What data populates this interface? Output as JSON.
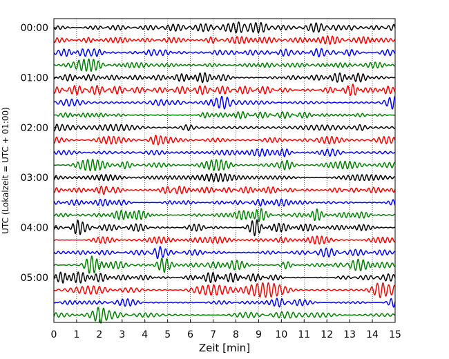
{
  "chart_data": {
    "type": "line",
    "title": "",
    "xlabel": "Zeit  [min]",
    "ylabel": "UTC (Lokalzeit = UTC + 01:00)",
    "xlim": [
      0,
      15
    ],
    "x_ticks": [
      0,
      1,
      2,
      3,
      4,
      5,
      6,
      7,
      8,
      9,
      10,
      11,
      12,
      13,
      14,
      15
    ],
    "x_tick_labels": [
      "0",
      "1",
      "2",
      "3",
      "4",
      "5",
      "6",
      "7",
      "8",
      "9",
      "10",
      "11",
      "12",
      "13",
      "14",
      "15"
    ],
    "y_tick_labels": [
      "00:00",
      "01:00",
      "02:00",
      "03:00",
      "04:00",
      "05:00"
    ],
    "y_tick_trace_index": [
      0,
      4,
      8,
      12,
      16,
      20
    ],
    "trace_count": 24,
    "trace_colors": [
      "#000000",
      "#ff0000",
      "#0000ff",
      "#008000"
    ],
    "grid": "vertical-dotted",
    "legend": "none",
    "bursts": [
      {
        "trace": 0,
        "t": 8.3,
        "amp": 1.6
      },
      {
        "trace": 0,
        "t": 13.2,
        "amp": 1.4
      },
      {
        "trace": 1,
        "t": 1.6,
        "amp": 1.3
      },
      {
        "trace": 1,
        "t": 7.0,
        "amp": 1.4
      },
      {
        "trace": 1,
        "t": 13.8,
        "amp": 1.3
      },
      {
        "trace": 3,
        "t": 1.0,
        "amp": 1.3
      },
      {
        "trace": 3,
        "t": 3.1,
        "amp": 1.5
      },
      {
        "trace": 5,
        "t": 13.3,
        "amp": 1.6
      },
      {
        "trace": 5,
        "t": 14.5,
        "amp": 1.4
      },
      {
        "trace": 6,
        "t": 5.6,
        "amp": 1.3
      },
      {
        "trace": 6,
        "t": 7.5,
        "amp": 1.3
      },
      {
        "trace": 6,
        "t": 14.9,
        "amp": 1.5
      },
      {
        "trace": 7,
        "t": 6.6,
        "amp": 1.3
      },
      {
        "trace": 8,
        "t": 5.9,
        "amp": 1.3
      },
      {
        "trace": 8,
        "t": 13.5,
        "amp": 1.3
      },
      {
        "trace": 9,
        "t": 4.4,
        "amp": 1.5
      },
      {
        "trace": 9,
        "t": 11.3,
        "amp": 1.3
      },
      {
        "trace": 10,
        "t": 10.1,
        "amp": 1.6
      },
      {
        "trace": 11,
        "t": 3.2,
        "amp": 1.8
      },
      {
        "trace": 11,
        "t": 10.2,
        "amp": 1.4
      },
      {
        "trace": 13,
        "t": 2.4,
        "amp": 1.8
      },
      {
        "trace": 13,
        "t": 5.2,
        "amp": 1.5
      },
      {
        "trace": 14,
        "t": 9.2,
        "amp": 1.4
      },
      {
        "trace": 15,
        "t": 9.0,
        "amp": 1.6
      },
      {
        "trace": 15,
        "t": 11.5,
        "amp": 1.7
      },
      {
        "trace": 16,
        "t": 1.0,
        "amp": 1.5
      },
      {
        "trace": 16,
        "t": 8.9,
        "amp": 2.2
      },
      {
        "trace": 17,
        "t": 10.0,
        "amp": 1.3
      },
      {
        "trace": 18,
        "t": 4.5,
        "amp": 1.8
      },
      {
        "trace": 19,
        "t": 1.6,
        "amp": 1.4
      },
      {
        "trace": 19,
        "t": 4.8,
        "amp": 1.3
      },
      {
        "trace": 19,
        "t": 10.2,
        "amp": 1.3
      },
      {
        "trace": 20,
        "t": 0.5,
        "amp": 1.4
      },
      {
        "trace": 21,
        "t": 14.3,
        "amp": 1.3
      },
      {
        "trace": 22,
        "t": 10.0,
        "amp": 1.5
      },
      {
        "trace": 22,
        "t": 14.9,
        "amp": 1.7
      },
      {
        "trace": 23,
        "t": 2.0,
        "amp": 1.5
      }
    ]
  }
}
